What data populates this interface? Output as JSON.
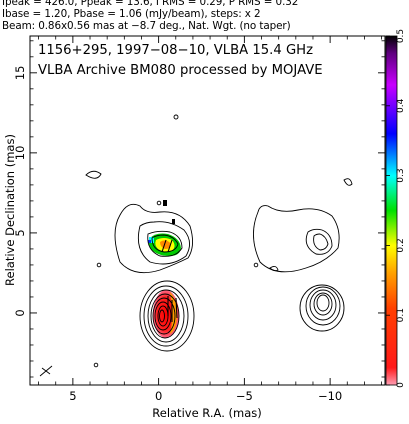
{
  "header": {
    "line1": "Ipeak = 426.0, Ppeak = 13.6, I RMS = 0.29, P RMS = 0.32",
    "line2": "Ibase = 1.20, Pbase = 1.06 (mJy/beam), steps: x 2",
    "line3": "Beam: 0.86x0.56 mas at −8.7 deg., Nat. Wgt. (no taper)"
  },
  "chart_data": {
    "type": "heatmap",
    "title": "1156+295, 1997−08−10, VLBA 15.4 GHz",
    "subtitle": "VLBA Archive BM080 processed by MOJAVE",
    "xlabel": "Relative R.A. (mas)",
    "ylabel": "Relative Declination (mas)",
    "xlim": [
      7.5,
      -13.2
    ],
    "ylim": [
      -4.5,
      17.3
    ],
    "x_ticks": [
      5,
      0,
      -5,
      -10
    ],
    "x_tick_labels": [
      "5",
      "0",
      "−5",
      "−10"
    ],
    "y_ticks": [
      0,
      5,
      10,
      15
    ],
    "y_tick_labels": [
      "0",
      "5",
      "10",
      "15"
    ],
    "colorbar": {
      "min": 0,
      "max": 0.5,
      "ticks": [
        0,
        0.1,
        0.2,
        0.3,
        0.4,
        0.5
      ],
      "tick_labels": [
        "0",
        "0.1",
        "0.2",
        "0.3",
        "0.4",
        "0.5"
      ],
      "colors": [
        "#ff9fb5",
        "#ff1010",
        "#ffa000",
        "#ffff00",
        "#00e000",
        "#00ffff",
        "#0000ff",
        "#c800ff",
        "#000000"
      ]
    },
    "panels": [
      "Stokes I contours",
      "Linear polarization intensity"
    ],
    "beam": {
      "major_mas": 0.86,
      "minor_mas": 0.56,
      "pa_deg": -8.7
    }
  }
}
